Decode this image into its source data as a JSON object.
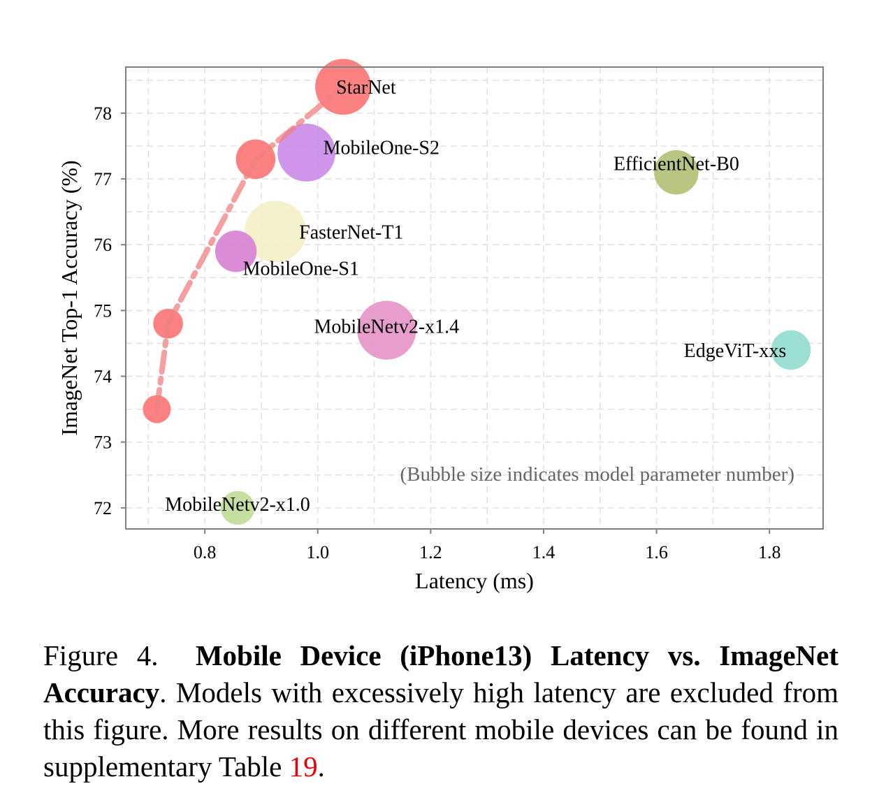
{
  "chart_data": {
    "type": "scatter",
    "xlabel": "Latency (ms)",
    "ylabel": "ImageNet Top-1 Accuracy (%)",
    "xlim": [
      0.66,
      1.895
    ],
    "ylim": [
      71.68,
      78.7
    ],
    "xticks": [
      "0.8",
      "1.0",
      "1.2",
      "1.4",
      "1.6",
      "1.8"
    ],
    "xtick_values": [
      0.8,
      1.0,
      1.2,
      1.4,
      1.6,
      1.8
    ],
    "yticks": [
      "72",
      "73",
      "74",
      "75",
      "76",
      "77",
      "78"
    ],
    "ytick_values": [
      72,
      73,
      74,
      75,
      76,
      77,
      78
    ],
    "grid": true,
    "annotation": "(Bubble size indicates model parameter number)",
    "starnet_line": {
      "color": "#f08080",
      "points": [
        [
          0.715,
          73.5
        ],
        [
          0.735,
          74.8
        ],
        [
          0.89,
          77.3
        ],
        [
          1.045,
          78.4
        ]
      ]
    },
    "points": [
      {
        "label": "",
        "x": 0.715,
        "y": 73.5,
        "size": 2.9,
        "color": "#fc7474"
      },
      {
        "label": "",
        "x": 0.735,
        "y": 74.8,
        "size": 3.1,
        "color": "#fc7474"
      },
      {
        "label": "",
        "x": 0.89,
        "y": 77.3,
        "size": 4.1,
        "color": "#fc7474"
      },
      {
        "label": "StarNet",
        "x": 1.045,
        "y": 78.4,
        "size": 5.8,
        "color": "#fc7474"
      },
      {
        "label": "MobileOne-S2",
        "x": 0.98,
        "y": 77.4,
        "size": 6.0,
        "color": "#c98ae8"
      },
      {
        "label": "EfficientNet-B0",
        "x": 1.635,
        "y": 77.1,
        "size": 4.6,
        "color": "#b0c074"
      },
      {
        "label": "FasterNet-T1",
        "x": 0.925,
        "y": 76.2,
        "size": 6.4,
        "color": "#f5f0c8"
      },
      {
        "label": "MobileOne-S1",
        "x": 0.855,
        "y": 75.9,
        "size": 4.3,
        "color": "#d77fd2"
      },
      {
        "label": "MobileNetv2-x1.4",
        "x": 1.122,
        "y": 74.7,
        "size": 6.1,
        "color": "#e593c6"
      },
      {
        "label": "EdgeViT-xxs",
        "x": 1.838,
        "y": 74.4,
        "size": 4.1,
        "color": "#90dcd0"
      },
      {
        "label": "MobileNetv2-x1.0",
        "x": 0.858,
        "y": 72.0,
        "size": 3.5,
        "color": "#bedc96"
      }
    ]
  },
  "caption": {
    "prefix": "Figure 4.",
    "bold": "Mobile Device (iPhone13) Latency vs. ImageNet Accuracy",
    "text_after_bold": ". Models with excessively high latency are excluded from this figure. More results on different mobile devices can be found in supplementary Table",
    "ref": "19",
    "end": "."
  }
}
